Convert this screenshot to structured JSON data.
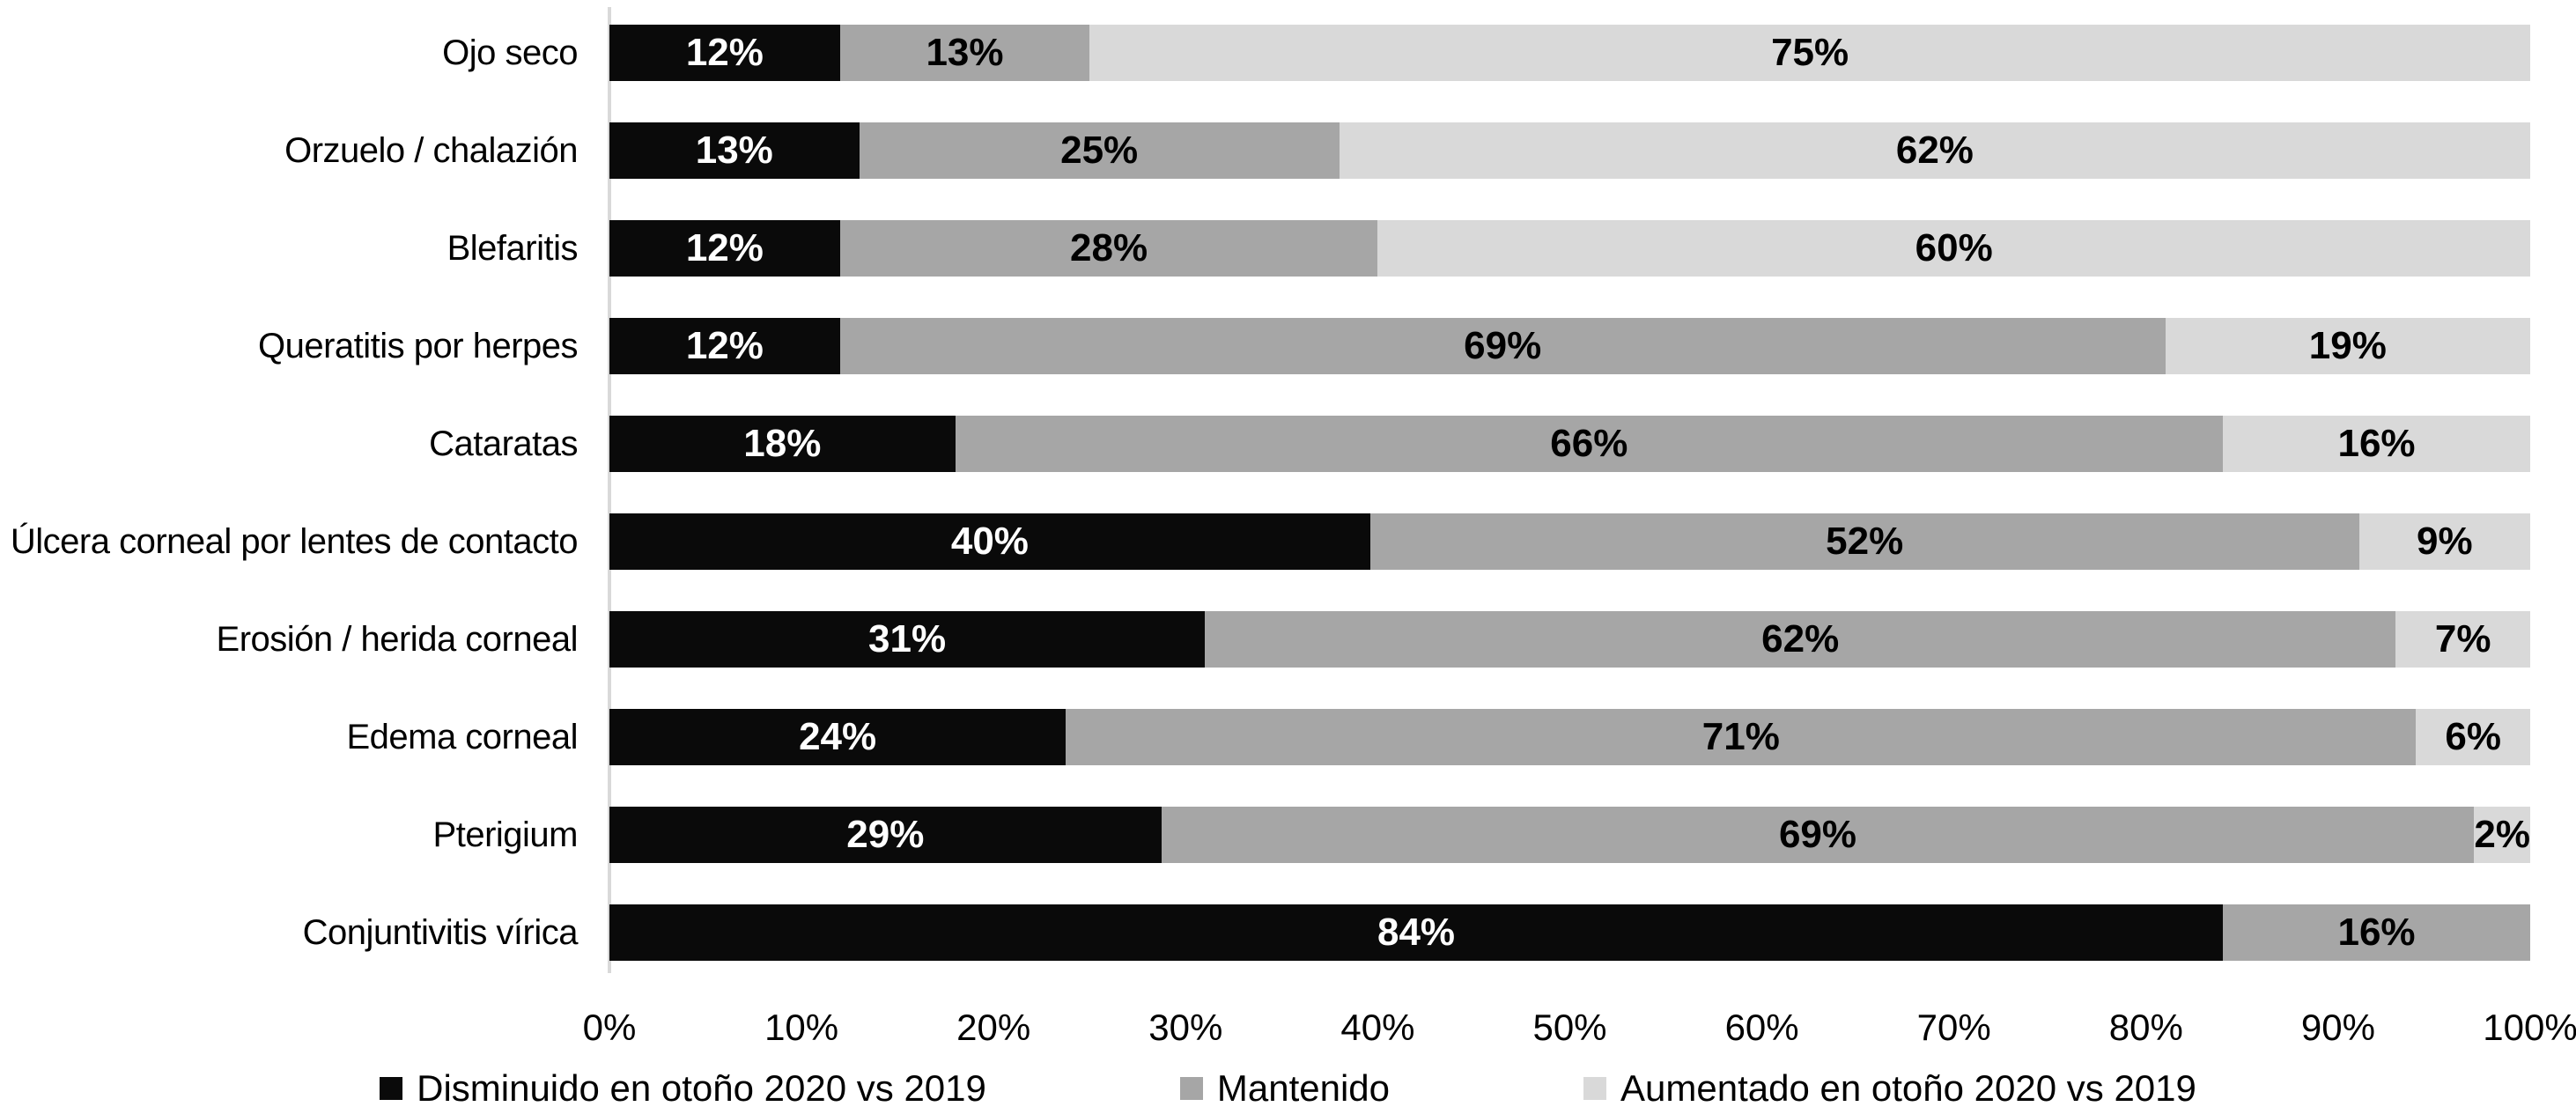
{
  "chart_data": {
    "type": "bar",
    "orientation": "horizontal",
    "stacked": true,
    "stacked_100_percent": true,
    "title": "",
    "xlabel": "",
    "ylabel": "",
    "xlim": [
      0,
      100
    ],
    "grid": false,
    "legend_position": "bottom",
    "background_color": "#ffffff",
    "axis_line_color": "#d9d9d9",
    "categories": [
      "Ojo seco",
      "Orzuelo / chalazión",
      "Blefaritis",
      "Queratitis por herpes",
      "Cataratas",
      "Úlcera corneal por lentes de contacto",
      "Erosión / herida corneal",
      "Edema corneal",
      "Pterigium",
      "Conjuntivitis vírica"
    ],
    "series": [
      {
        "name": "Disminuido en otoño 2020 vs 2019",
        "color": "#0a0a0a",
        "label_color": "#ffffff",
        "values": [
          12,
          13,
          12,
          12,
          18,
          40,
          31,
          24,
          29,
          84
        ]
      },
      {
        "name": "Mantenido",
        "color": "#a6a6a6",
        "label_color": "#000000",
        "values": [
          13,
          25,
          28,
          69,
          66,
          52,
          62,
          71,
          69,
          16
        ]
      },
      {
        "name": "Aumentado en otoño 2020 vs 2019",
        "color": "#d9d9d9",
        "label_color": "#000000",
        "values": [
          75,
          62,
          60,
          19,
          16,
          9,
          7,
          6,
          2,
          0
        ]
      }
    ],
    "data_label_suffix": "%",
    "x_ticks": [
      "0%",
      "10%",
      "20%",
      "30%",
      "40%",
      "50%",
      "60%",
      "70%",
      "80%",
      "90%",
      "100%"
    ]
  },
  "layout_note_visible_text_only": true
}
